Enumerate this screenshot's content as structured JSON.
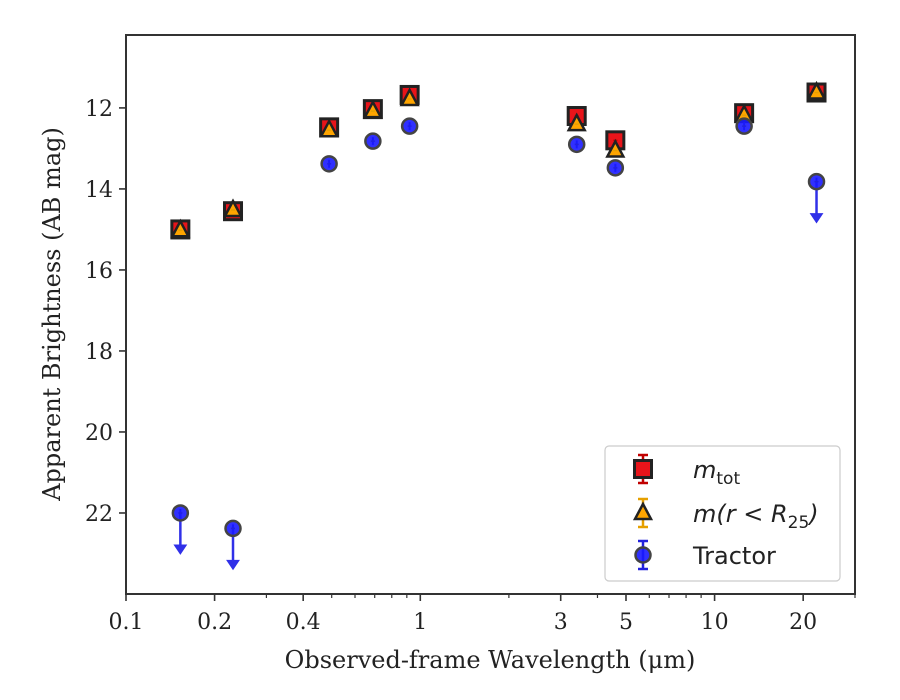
{
  "chart_data": {
    "type": "scatter",
    "title": "",
    "xlabel": "Observed-frame Wavelength (μm)",
    "ylabel": "Apparent Brightness (AB mag)",
    "xscale": "log",
    "xlim": [
      0.1,
      30
    ],
    "ylim": [
      24.0,
      10.2
    ],
    "y_inverted": true,
    "grid": false,
    "legend_position": "bottom-right",
    "x_ticks": [
      {
        "value": 0.1,
        "label": "0.1"
      },
      {
        "value": 0.2,
        "label": "0.2"
      },
      {
        "value": 0.4,
        "label": "0.4"
      },
      {
        "value": 1,
        "label": "1"
      },
      {
        "value": 3,
        "label": "3"
      },
      {
        "value": 5,
        "label": "5"
      },
      {
        "value": 10,
        "label": "10"
      },
      {
        "value": 20,
        "label": "20"
      }
    ],
    "y_ticks": [
      {
        "value": 12,
        "label": "12"
      },
      {
        "value": 14,
        "label": "14"
      },
      {
        "value": 16,
        "label": "16"
      },
      {
        "value": 18,
        "label": "18"
      },
      {
        "value": 20,
        "label": "20"
      },
      {
        "value": 22,
        "label": "22"
      }
    ],
    "series": [
      {
        "name": "m_tot",
        "legend_label": "m",
        "legend_sub": "tot",
        "marker": "square",
        "color": "#e8141a",
        "edge_color": "#222222",
        "errorbar_color": "#c00000",
        "points": [
          {
            "x": 0.153,
            "y": 15.0
          },
          {
            "x": 0.231,
            "y": 14.55
          },
          {
            "x": 0.49,
            "y": 12.48
          },
          {
            "x": 0.69,
            "y": 12.03
          },
          {
            "x": 0.92,
            "y": 11.68
          },
          {
            "x": 3.4,
            "y": 12.2
          },
          {
            "x": 4.6,
            "y": 12.8
          },
          {
            "x": 12.6,
            "y": 12.13
          },
          {
            "x": 22.2,
            "y": 11.62
          }
        ]
      },
      {
        "name": "m(r < R25)",
        "legend_label": "m(r < R",
        "legend_sub": "25",
        "legend_close": ")",
        "marker": "triangle",
        "color": "#ffa500",
        "edge_color": "#222222",
        "errorbar_color": "#e6a000",
        "points": [
          {
            "x": 0.153,
            "y": 15.02
          },
          {
            "x": 0.231,
            "y": 14.52
          },
          {
            "x": 0.49,
            "y": 12.55
          },
          {
            "x": 0.69,
            "y": 12.08
          },
          {
            "x": 0.92,
            "y": 11.78
          },
          {
            "x": 3.4,
            "y": 12.4
          },
          {
            "x": 4.6,
            "y": 13.05
          },
          {
            "x": 12.6,
            "y": 12.18
          },
          {
            "x": 22.2,
            "y": 11.62
          }
        ]
      },
      {
        "name": "Tractor",
        "legend_label": "Tractor",
        "marker": "circle",
        "color": "#1a1aff",
        "edge_color": "#444444",
        "errorbar_color": "#2222dd",
        "upper_limit_color": "#3030e8",
        "points": [
          {
            "x": 0.153,
            "y": 22.0,
            "upper_limit": true
          },
          {
            "x": 0.231,
            "y": 22.38,
            "upper_limit": true
          },
          {
            "x": 0.49,
            "y": 13.38
          },
          {
            "x": 0.69,
            "y": 12.82
          },
          {
            "x": 0.92,
            "y": 12.45
          },
          {
            "x": 3.4,
            "y": 12.9
          },
          {
            "x": 4.6,
            "y": 13.48
          },
          {
            "x": 12.6,
            "y": 12.45
          },
          {
            "x": 22.2,
            "y": 13.82,
            "upper_limit": true
          }
        ]
      }
    ]
  }
}
